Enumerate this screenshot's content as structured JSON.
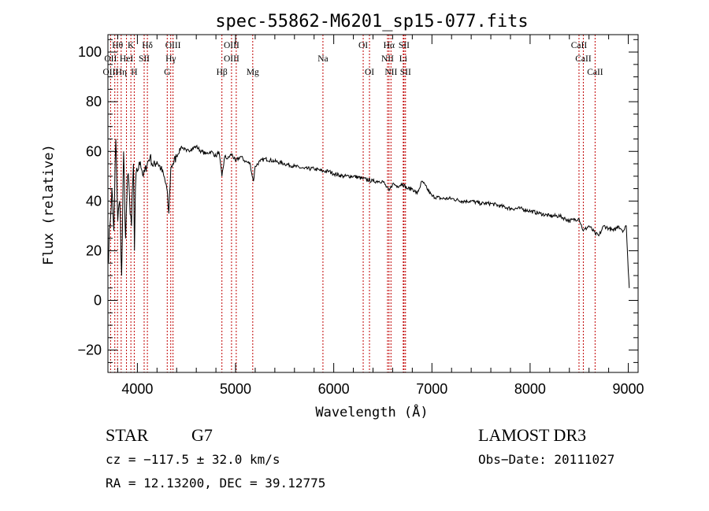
{
  "chart_data": {
    "type": "line",
    "title": "spec-55862-M6201_sp15-077.fits",
    "xlabel": "Wavelength (Å)",
    "ylabel": "Flux (relative)",
    "xlim": [
      3700,
      9100
    ],
    "ylim": [
      -29,
      107
    ],
    "xticks": [
      4000,
      5000,
      6000,
      7000,
      8000,
      9000
    ],
    "yticks": [
      -20,
      0,
      20,
      40,
      60,
      80,
      100
    ],
    "series": [
      {
        "name": "flux",
        "x": [
          3700,
          3720,
          3740,
          3760,
          3780,
          3800,
          3820,
          3840,
          3860,
          3880,
          3900,
          3920,
          3940,
          3960,
          3970,
          3980,
          4000,
          4030,
          4060,
          4100,
          4130,
          4160,
          4200,
          4240,
          4270,
          4300,
          4320,
          4340,
          4360,
          4400,
          4450,
          4500,
          4550,
          4600,
          4650,
          4700,
          4750,
          4800,
          4830,
          4861,
          4890,
          4920,
          4960,
          5000,
          5050,
          5100,
          5150,
          5170,
          5183,
          5200,
          5250,
          5300,
          5400,
          5500,
          5600,
          5700,
          5800,
          5890,
          5950,
          6000,
          6100,
          6200,
          6300,
          6400,
          6450,
          6500,
          6563,
          6600,
          6650,
          6700,
          6750,
          6800,
          6850,
          6900,
          7000,
          7100,
          7200,
          7300,
          7400,
          7500,
          7600,
          7700,
          7800,
          7900,
          8000,
          8100,
          8200,
          8300,
          8400,
          8498,
          8542,
          8600,
          8662,
          8700,
          8750,
          8800,
          8850,
          8900,
          8950,
          8980,
          9000,
          9010
        ],
        "values": [
          15,
          30,
          45,
          28,
          65,
          32,
          40,
          10,
          60,
          25,
          50,
          42,
          30,
          55,
          20,
          45,
          52,
          56,
          50,
          55,
          58,
          54,
          56,
          53,
          50,
          45,
          35,
          53,
          55,
          58,
          62,
          60,
          61,
          62,
          60,
          59,
          60,
          58,
          60,
          50,
          58,
          57,
          59,
          56,
          58,
          56,
          55,
          50,
          48,
          54,
          56,
          57,
          56,
          55,
          54,
          53,
          53,
          52,
          52,
          51,
          50,
          50,
          49,
          48,
          48,
          48,
          44,
          47,
          46,
          47,
          45,
          45,
          43,
          48,
          42,
          41,
          41,
          40,
          40,
          39,
          39,
          38,
          37,
          37,
          36,
          35,
          34,
          34,
          32,
          33,
          28,
          30,
          27,
          26,
          30,
          29,
          28,
          30,
          28,
          30,
          12,
          5
        ]
      }
    ],
    "spectral_lines": [
      {
        "label": "Hθ",
        "x": 3798,
        "row": 0
      },
      {
        "label": "K",
        "x": 3934,
        "row": 0
      },
      {
        "label": "Hδ",
        "x": 4102,
        "row": 0
      },
      {
        "label": "OIII",
        "x": 4363,
        "row": 0
      },
      {
        "label": "OIII",
        "x": 4959,
        "row": 0
      },
      {
        "label": "OI",
        "x": 6300,
        "row": 0
      },
      {
        "label": "Hα",
        "x": 6563,
        "row": 0
      },
      {
        "label": "SII",
        "x": 6716,
        "row": 0
      },
      {
        "label": "CaII",
        "x": 8498,
        "row": 0
      },
      {
        "label": "OII",
        "x": 3727,
        "row": 1
      },
      {
        "label": "HeI",
        "x": 3889,
        "row": 1
      },
      {
        "label": "SII",
        "x": 4069,
        "row": 1
      },
      {
        "label": "Hγ",
        "x": 4340,
        "row": 1
      },
      {
        "label": "OIII",
        "x": 4959,
        "row": 1
      },
      {
        "label": "Na",
        "x": 5890,
        "row": 1
      },
      {
        "label": "NII",
        "x": 6548,
        "row": 1
      },
      {
        "label": "Li",
        "x": 6708,
        "row": 1
      },
      {
        "label": "CaII",
        "x": 8542,
        "row": 1
      },
      {
        "label": "OIII",
        "x": 3727,
        "row": 2
      },
      {
        "label": "Hη",
        "x": 3835,
        "row": 2
      },
      {
        "label": "H",
        "x": 3968,
        "row": 2
      },
      {
        "label": "G",
        "x": 4304,
        "row": 2
      },
      {
        "label": "Hβ",
        "x": 4861,
        "row": 2
      },
      {
        "label": "Mg",
        "x": 5175,
        "row": 2
      },
      {
        "label": "OI",
        "x": 6364,
        "row": 2
      },
      {
        "label": "NII",
        "x": 6583,
        "row": 2
      },
      {
        "label": "SII",
        "x": 6731,
        "row": 2
      },
      {
        "label": "CaII",
        "x": 8662,
        "row": 2
      }
    ],
    "line_x": [
      3727,
      3770,
      3798,
      3835,
      3889,
      3934,
      3968,
      4069,
      4102,
      4304,
      4340,
      4363,
      4861,
      4959,
      5007,
      5175,
      5890,
      6300,
      6364,
      6548,
      6563,
      6583,
      6708,
      6716,
      6731,
      8498,
      8542,
      8662
    ],
    "line_color": "#c00000"
  },
  "info": {
    "class_label": "STAR",
    "subclass": "G7",
    "survey": "LAMOST DR3",
    "cz": "cz = −117.5 ± 32.0 km/s",
    "obs_date": "Obs−Date: 20111027",
    "coords": "RA =  12.13200, DEC =  39.12775"
  }
}
